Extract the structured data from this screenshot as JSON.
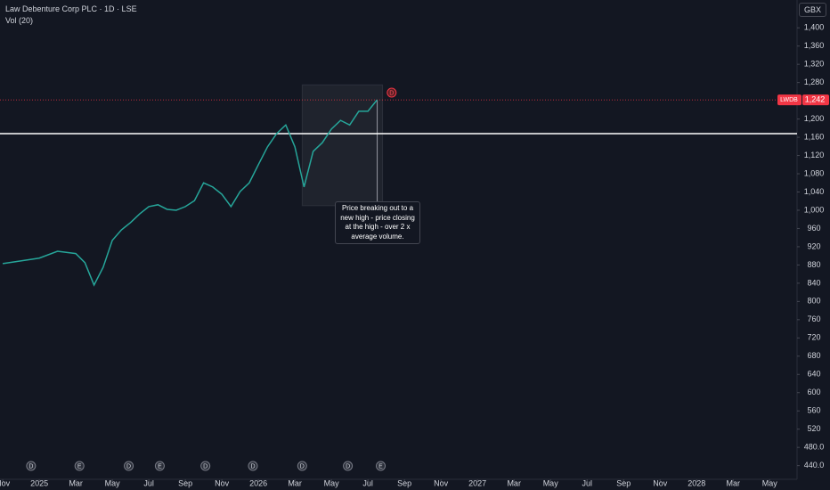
{
  "chart_data": {
    "type": "line",
    "title": "Law Debenture Corp PLC · 1D · LSE",
    "subtitle": "Vol (20)",
    "currency": "GBX",
    "x": [
      0,
      2,
      3,
      4,
      4.5,
      5,
      5.5,
      6,
      6.5,
      7,
      7.5,
      8,
      8.5,
      9,
      9.5,
      10,
      10.5,
      11,
      11.5,
      12,
      12.5,
      13,
      13.5,
      14,
      14.5,
      15,
      15.5,
      16,
      16.5,
      17,
      17.5,
      18,
      18.5,
      19,
      19.5,
      20,
      20.5
    ],
    "series": [
      {
        "name": "LWDB",
        "color": "#26a69a",
        "values": [
          883,
          895,
          910,
          905,
          885,
          836,
          875,
          934,
          957,
          973,
          992,
          1008,
          1012,
          1002,
          1000,
          1008,
          1021,
          1060,
          1051,
          1035,
          1008,
          1041,
          1060,
          1100,
          1139,
          1168,
          1187,
          1139,
          1051,
          1129,
          1148,
          1178,
          1197,
          1187,
          1217,
          1217,
          1242
        ]
      }
    ],
    "xlim": [
      -0.15,
      43.5
    ],
    "xticks": [
      {
        "value": 0,
        "label": "Nov"
      },
      {
        "value": 2,
        "label": "2025"
      },
      {
        "value": 4,
        "label": "Mar"
      },
      {
        "value": 6,
        "label": "May"
      },
      {
        "value": 8,
        "label": "Jul"
      },
      {
        "value": 10,
        "label": "Sep"
      },
      {
        "value": 12,
        "label": "Nov"
      },
      {
        "value": 14,
        "label": "2026"
      },
      {
        "value": 16,
        "label": "Mar"
      },
      {
        "value": 18,
        "label": "May"
      },
      {
        "value": 20,
        "label": "Jul"
      },
      {
        "value": 22,
        "label": "Sep"
      },
      {
        "value": 24,
        "label": "Nov"
      },
      {
        "value": 26,
        "label": "2027"
      },
      {
        "value": 28,
        "label": "Mar"
      },
      {
        "value": 30,
        "label": "May"
      },
      {
        "value": 32,
        "label": "Jul"
      },
      {
        "value": 34,
        "label": "Sep"
      },
      {
        "value": 36,
        "label": "Nov"
      },
      {
        "value": 38,
        "label": "2028"
      },
      {
        "value": 40,
        "label": "Mar"
      },
      {
        "value": 42,
        "label": "May"
      }
    ],
    "ylim": [
      410,
      1461
    ],
    "yticks": [
      {
        "value": 1400,
        "label": "1,400"
      },
      {
        "value": 1360,
        "label": "1,360"
      },
      {
        "value": 1320,
        "label": "1,320"
      },
      {
        "value": 1280,
        "label": "1,280"
      },
      {
        "value": 1200,
        "label": "1,200"
      },
      {
        "value": 1160,
        "label": "1,160"
      },
      {
        "value": 1120,
        "label": "1,120"
      },
      {
        "value": 1080,
        "label": "1,080"
      },
      {
        "value": 1040,
        "label": "1,040"
      },
      {
        "value": 1000,
        "label": "1,000"
      },
      960,
      920,
      880,
      840,
      800,
      760,
      720,
      680,
      640,
      600,
      560,
      520,
      {
        "value": 480,
        "label": "480.0"
      },
      {
        "value": 440,
        "label": "440.0"
      }
    ],
    "last_price": {
      "value": 1242,
      "label": "1,242"
    },
    "level_line": 1168,
    "highlight": {
      "xlim": [
        16.4,
        20.8
      ],
      "ylim": [
        1010,
        1275
      ]
    },
    "annotation": "Price breaking out to a new high - price closing at the high - over 2 x average volume.",
    "events": [
      {
        "x": 1.55,
        "label": "D"
      },
      {
        "x": 4.2,
        "label": "E"
      },
      {
        "x": 6.9,
        "label": "D"
      },
      {
        "x": 8.6,
        "label": "E"
      },
      {
        "x": 11.1,
        "label": "D"
      },
      {
        "x": 13.7,
        "label": "D"
      },
      {
        "x": 16.4,
        "label": "D"
      },
      {
        "x": 18.9,
        "label": "D"
      },
      {
        "x": 20.7,
        "label": "E"
      }
    ],
    "upcoming_event": {
      "x": 21.3,
      "label": "D"
    }
  }
}
